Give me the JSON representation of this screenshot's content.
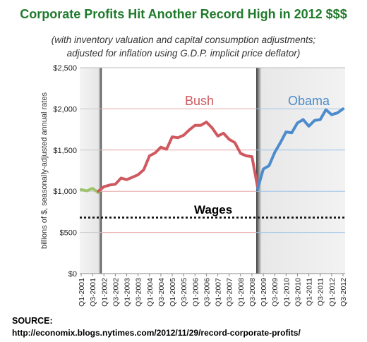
{
  "title": "Corporate Profits Hit Another Record High in 2012 $$$",
  "subtitle_line1": "(with inventory valuation and capital consumption adjustments;",
  "subtitle_line2": "adjusted for inflation using G.D.P. implicit price deflator)",
  "source_label": "SOURCE:",
  "source_url": "http://economix.blogs.nytimes.com/2012/11/29/record-corporate-profits/",
  "colors": {
    "title": "#1f7a2b",
    "pre_period": "#9dc36b",
    "bush": "#d0595f",
    "obama": "#4c8ccc",
    "recession_shade": "#d9d9d9"
  },
  "chart_data": {
    "type": "line",
    "ylabel": "billions of $, seasonally-adjusted annual rates",
    "ylim": [
      0,
      2500
    ],
    "y_ticks": [
      0,
      500,
      1000,
      1500,
      2000,
      2500
    ],
    "y_tick_labels": [
      "$0",
      "$500",
      "$1,000",
      "$1,500",
      "$2,000",
      "$2,500"
    ],
    "x_tick_labels": [
      "Q1-2001",
      "Q3-2001",
      "Q1-2002",
      "Q3-2002",
      "Q1-2003",
      "Q3-2003",
      "Q1-2004",
      "Q3-2004",
      "Q1-2005",
      "Q3-2005",
      "Q1-2006",
      "Q3-2006",
      "Q1-2007",
      "Q3-2007",
      "Q1-2008",
      "Q3-2008",
      "Q1-2009",
      "Q3-2009",
      "Q1-2010",
      "Q3-2010",
      "Q1-2011",
      "Q3-2011",
      "Q1-2012",
      "Q3-2012"
    ],
    "shaded_periods": [
      {
        "from": "Q1-2001",
        "to": "Q4-2001"
      },
      {
        "from": "Q4-2008",
        "to": "Q3-2012"
      }
    ],
    "series": [
      {
        "name": "",
        "color_key": "pre_period",
        "x": [
          "Q1-2001",
          "Q2-2001",
          "Q3-2001",
          "Q4-2001"
        ],
        "values": [
          1020,
          1005,
          1035,
          985
        ]
      },
      {
        "name": "Bush",
        "color_key": "bush",
        "x": [
          "Q4-2001",
          "Q1-2002",
          "Q2-2002",
          "Q3-2002",
          "Q4-2002",
          "Q1-2003",
          "Q2-2003",
          "Q3-2003",
          "Q4-2003",
          "Q1-2004",
          "Q2-2004",
          "Q3-2004",
          "Q4-2004",
          "Q1-2005",
          "Q2-2005",
          "Q3-2005",
          "Q4-2005",
          "Q1-2006",
          "Q2-2006",
          "Q3-2006",
          "Q4-2006",
          "Q1-2007",
          "Q2-2007",
          "Q3-2007",
          "Q4-2007",
          "Q1-2008",
          "Q2-2008",
          "Q3-2008",
          "Q4-2008"
        ],
        "values": [
          1000,
          1055,
          1075,
          1085,
          1160,
          1140,
          1170,
          1200,
          1260,
          1430,
          1465,
          1535,
          1510,
          1660,
          1650,
          1680,
          1745,
          1800,
          1800,
          1840,
          1770,
          1670,
          1705,
          1630,
          1590,
          1460,
          1430,
          1420,
          1050
        ]
      },
      {
        "name": "Obama",
        "color_key": "obama",
        "x": [
          "Q4-2008",
          "Q1-2009",
          "Q2-2009",
          "Q3-2009",
          "Q4-2009",
          "Q1-2010",
          "Q2-2010",
          "Q3-2010",
          "Q4-2010",
          "Q1-2011",
          "Q2-2011",
          "Q3-2011",
          "Q4-2011",
          "Q1-2012",
          "Q2-2012",
          "Q3-2012"
        ],
        "values": [
          1030,
          1270,
          1310,
          1470,
          1590,
          1720,
          1710,
          1830,
          1870,
          1790,
          1860,
          1870,
          1990,
          1930,
          1950,
          2000
        ]
      }
    ],
    "reference_lines": [
      {
        "label": "Wages",
        "value": 680,
        "style": "dotted"
      }
    ],
    "annotations": [
      {
        "text": "Bush",
        "color_key": "bush"
      },
      {
        "text": "Obama",
        "color_key": "obama"
      },
      {
        "text": "Wages",
        "color_key": "wages"
      }
    ],
    "grid": true,
    "legend": "none"
  }
}
